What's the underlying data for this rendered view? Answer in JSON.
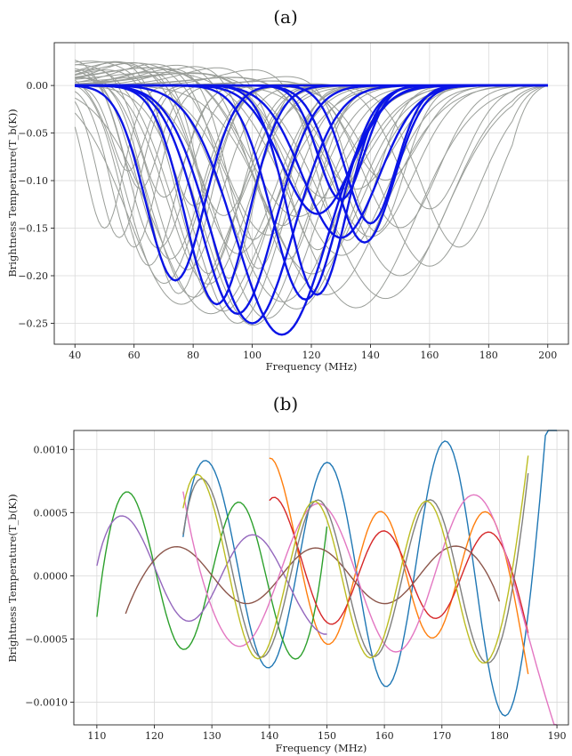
{
  "chart_data": [
    {
      "type": "line",
      "panel_label": "(a)",
      "title": "",
      "xlabel": "Frequency (MHz)",
      "ylabel": "Brightness Temperature(T_b(K))",
      "xlim": [
        33,
        207
      ],
      "ylim": [
        -0.272,
        0.045
      ],
      "xticks": [
        40,
        60,
        80,
        100,
        120,
        140,
        160,
        180,
        200
      ],
      "yticks": [
        -0.25,
        -0.2,
        -0.15,
        -0.1,
        -0.05,
        0.0
      ],
      "ytick_labels": [
        "−0.25",
        "−0.20",
        "−0.15",
        "−0.10",
        "−0.05",
        "0.00"
      ],
      "grid": true,
      "colors": {
        "background_family": "#9a9e99",
        "highlight": "#0a14e6"
      },
      "series_note": "",
      "background_series": [
        {
          "A": 0.255,
          "nu0": 100,
          "w": 24,
          "pos": 0.03
        },
        {
          "A": 0.24,
          "nu0": 90,
          "w": 22,
          "pos": 0.025
        },
        {
          "A": 0.225,
          "nu0": 80,
          "w": 20,
          "pos": 0.02
        },
        {
          "A": 0.21,
          "nu0": 70,
          "w": 17,
          "pos": 0.015
        },
        {
          "A": 0.23,
          "nu0": 110,
          "w": 26,
          "pos": 0.03
        },
        {
          "A": 0.2,
          "nu0": 120,
          "w": 24,
          "pos": 0.025
        },
        {
          "A": 0.18,
          "nu0": 130,
          "w": 22,
          "pos": 0.02
        },
        {
          "A": 0.16,
          "nu0": 140,
          "w": 20,
          "pos": 0.015
        },
        {
          "A": 0.15,
          "nu0": 150,
          "w": 18,
          "pos": 0.01
        },
        {
          "A": 0.13,
          "nu0": 160,
          "w": 16,
          "pos": 0.005
        },
        {
          "A": 0.22,
          "nu0": 75,
          "w": 14,
          "pos": 0.01
        },
        {
          "A": 0.19,
          "nu0": 65,
          "w": 13,
          "pos": 0.005
        },
        {
          "A": 0.17,
          "nu0": 60,
          "w": 11,
          "pos": 0.0
        },
        {
          "A": 0.2,
          "nu0": 85,
          "w": 15,
          "pos": 0.02
        },
        {
          "A": 0.18,
          "nu0": 95,
          "w": 18,
          "pos": 0.03
        },
        {
          "A": 0.16,
          "nu0": 105,
          "w": 20,
          "pos": 0.03
        },
        {
          "A": 0.14,
          "nu0": 115,
          "w": 22,
          "pos": 0.025
        },
        {
          "A": 0.12,
          "nu0": 125,
          "w": 20,
          "pos": 0.02
        },
        {
          "A": 0.11,
          "nu0": 135,
          "w": 18,
          "pos": 0.015
        },
        {
          "A": 0.1,
          "nu0": 145,
          "w": 16,
          "pos": 0.01
        },
        {
          "A": 0.25,
          "nu0": 95,
          "w": 21,
          "pos": 0.0
        },
        {
          "A": 0.245,
          "nu0": 105,
          "w": 23,
          "pos": 0.0
        },
        {
          "A": 0.235,
          "nu0": 115,
          "w": 25,
          "pos": 0.0
        },
        {
          "A": 0.22,
          "nu0": 125,
          "w": 27,
          "pos": 0.0
        },
        {
          "A": 0.21,
          "nu0": 85,
          "w": 19,
          "pos": 0.01
        },
        {
          "A": 0.195,
          "nu0": 78,
          "w": 16,
          "pos": 0.01
        },
        {
          "A": 0.185,
          "nu0": 72,
          "w": 15,
          "pos": 0.02
        },
        {
          "A": 0.175,
          "nu0": 68,
          "w": 14,
          "pos": 0.03
        },
        {
          "A": 0.165,
          "nu0": 100,
          "w": 15,
          "pos": 0.03
        },
        {
          "A": 0.15,
          "nu0": 110,
          "w": 16,
          "pos": 0.03
        },
        {
          "A": 0.14,
          "nu0": 90,
          "w": 14,
          "pos": 0.03
        },
        {
          "A": 0.13,
          "nu0": 80,
          "w": 12,
          "pos": 0.03
        },
        {
          "A": 0.12,
          "nu0": 70,
          "w": 11,
          "pos": 0.02
        },
        {
          "A": 0.2,
          "nu0": 150,
          "w": 24,
          "pos": 0.0
        },
        {
          "A": 0.19,
          "nu0": 160,
          "w": 22,
          "pos": 0.0
        },
        {
          "A": 0.17,
          "nu0": 170,
          "w": 18,
          "pos": 0.0
        },
        {
          "A": 0.235,
          "nu0": 135,
          "w": 28,
          "pos": 0.02
        },
        {
          "A": 0.225,
          "nu0": 145,
          "w": 28,
          "pos": 0.02
        },
        {
          "A": 0.16,
          "nu0": 55,
          "w": 10,
          "pos": 0.0
        },
        {
          "A": 0.15,
          "nu0": 50,
          "w": 9,
          "pos": 0.0
        },
        {
          "A": 0.205,
          "nu0": 92,
          "w": 12,
          "pos": 0.02
        },
        {
          "A": 0.195,
          "nu0": 102,
          "w": 13,
          "pos": 0.025
        },
        {
          "A": 0.185,
          "nu0": 112,
          "w": 14,
          "pos": 0.03
        },
        {
          "A": 0.175,
          "nu0": 122,
          "w": 15,
          "pos": 0.03
        },
        {
          "A": 0.165,
          "nu0": 132,
          "w": 14,
          "pos": 0.03
        },
        {
          "A": 0.155,
          "nu0": 142,
          "w": 13,
          "pos": 0.02
        },
        {
          "A": 0.11,
          "nu0": 62,
          "w": 9,
          "pos": 0.01
        },
        {
          "A": 0.09,
          "nu0": 58,
          "w": 8,
          "pos": 0.0
        },
        {
          "A": 0.24,
          "nu0": 86,
          "w": 27,
          "pos": 0.0
        },
        {
          "A": 0.23,
          "nu0": 76,
          "w": 25,
          "pos": 0.0
        }
      ],
      "highlight_series": [
        {
          "A": 0.262,
          "nu0": 110,
          "w": 22,
          "pos": 0.0
        },
        {
          "A": 0.25,
          "nu0": 100,
          "w": 20,
          "pos": 0.0
        },
        {
          "A": 0.24,
          "nu0": 95,
          "w": 18,
          "pos": 0.0
        },
        {
          "A": 0.23,
          "nu0": 88,
          "w": 15,
          "pos": 0.0
        },
        {
          "A": 0.225,
          "nu0": 118,
          "w": 16,
          "pos": 0.0
        },
        {
          "A": 0.22,
          "nu0": 122,
          "w": 14,
          "pos": 0.0
        },
        {
          "A": 0.205,
          "nu0": 74,
          "w": 14,
          "pos": 0.0
        },
        {
          "A": 0.16,
          "nu0": 130,
          "w": 18,
          "pos": 0.0
        },
        {
          "A": 0.135,
          "nu0": 122,
          "w": 17,
          "pos": 0.0
        },
        {
          "A": 0.12,
          "nu0": 130,
          "w": 11,
          "pos": 0.0
        },
        {
          "A": 0.165,
          "nu0": 138,
          "w": 14,
          "pos": 0.0
        },
        {
          "A": 0.145,
          "nu0": 140,
          "w": 12,
          "pos": 0.0
        }
      ]
    },
    {
      "type": "line",
      "panel_label": "(b)",
      "title": "",
      "xlabel": "Frequency (MHz)",
      "ylabel": "Brightness Temperature(T_b(K))",
      "xlim": [
        106,
        192
      ],
      "ylim": [
        -0.00118,
        0.00115
      ],
      "xticks": [
        110,
        120,
        130,
        140,
        150,
        160,
        170,
        180,
        190
      ],
      "yticks": [
        -0.001,
        -0.0005,
        0.0,
        0.0005,
        0.001
      ],
      "ytick_labels": [
        "−0.0010",
        "−0.0005",
        "0.0000",
        "0.0005",
        "0.0010"
      ],
      "grid": true,
      "series": [
        {
          "color": "#1f77b4",
          "x0": 125,
          "x1": 190,
          "amp": 0.00068,
          "period": 20.5,
          "phase": 0.2,
          "decay": 0.0088,
          "offset": 5e-05
        },
        {
          "color": "#ff7f0e",
          "x0": 140,
          "x1": 185,
          "amp": 0.00055,
          "period": 18.0,
          "phase": 1.1,
          "decay": -0.004,
          "offset": 0.0
        },
        {
          "color": "#2ca02c",
          "x0": 110,
          "x1": 150,
          "amp": 0.00058,
          "period": 19.0,
          "phase": -0.3,
          "decay": 0.0,
          "offset": 0.0
        },
        {
          "color": "#d62728",
          "x0": 140,
          "x1": 185,
          "amp": 0.0004,
          "period": 18.0,
          "phase": 0.9,
          "decay": -0.006,
          "offset": 0.0
        },
        {
          "color": "#9467bd",
          "x0": 110,
          "x1": 150,
          "amp": 0.00042,
          "period": 22.0,
          "phase": 0.1,
          "decay": -0.01,
          "offset": 0.0
        },
        {
          "color": "#8c564b",
          "x0": 115,
          "x1": 180,
          "amp": 0.00022,
          "period": 24.0,
          "phase": -0.8,
          "decay": 0.0,
          "offset": 0.0
        },
        {
          "color": "#e377c2",
          "x0": 125,
          "x1": 190,
          "amp": 0.00052,
          "period": 27.0,
          "phase": 2.4,
          "decay": 0.004,
          "offset": 0.0
        },
        {
          "color": "#7f7f7f",
          "x0": 125,
          "x1": 185,
          "amp": 0.00062,
          "period": 19.5,
          "phase": 0.3,
          "decay": 0.0,
          "offset": -2e-05
        },
        {
          "color": "#bcbd22",
          "x0": 125,
          "x1": 185,
          "amp": 0.00062,
          "period": 19.5,
          "phase": 0.5,
          "decay": 0.0,
          "offset": -3e-05
        }
      ]
    }
  ]
}
